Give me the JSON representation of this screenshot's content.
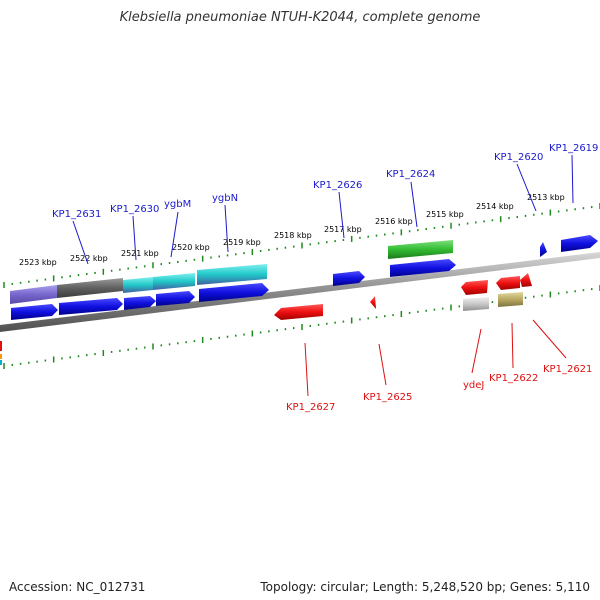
{
  "title": "Klebsiella pneumoniae NTUH-K2044, complete genome",
  "accession": "Accession: NC_012731",
  "summary": "Topology: circular; Length: 5,248,520 bp; Genes: 5,110",
  "colors": {
    "forward_label": "#1a1acc",
    "reverse_label": "#dd1111",
    "tick": "#1f8a1f",
    "backbone": "#808080"
  },
  "scale_labels": [
    "2523 kbp",
    "2522 kbp",
    "2521 kbp",
    "2520 kbp",
    "2519 kbp",
    "2518 kbp",
    "2517 kbp",
    "2516 kbp",
    "2515 kbp",
    "2514 kbp",
    "2513 kbp"
  ],
  "forward_genes": [
    "KP1_2631",
    "KP1_2630",
    "ygbM",
    "ygbN",
    "KP1_2626",
    "KP1_2624",
    "KP1_2620",
    "KP1_2619"
  ],
  "reverse_genes": [
    "KP1_2627",
    "KP1_2625",
    "ydeJ",
    "KP1_2622",
    "KP1_2621"
  ]
}
